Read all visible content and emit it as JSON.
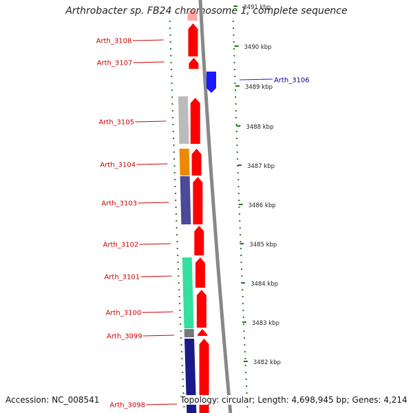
{
  "title": "Arthrobacter sp. FB24 chromosome 1, complete sequence",
  "footer": {
    "accession_label": "Accession:",
    "accession": "NC_008541",
    "topology_label": "Topology:",
    "topology": "circular",
    "length_label": "Length:",
    "length": "4,698,945 bp",
    "genes_label": "Genes:",
    "genes": "4,214"
  },
  "genes": [
    {
      "name": "Arth_3108",
      "strand": "forward"
    },
    {
      "name": "Arth_3107",
      "strand": "forward"
    },
    {
      "name": "Arth_3106",
      "strand": "reverse"
    },
    {
      "name": "Arth_3105",
      "strand": "forward"
    },
    {
      "name": "Arth_3104",
      "strand": "forward"
    },
    {
      "name": "Arth_3103",
      "strand": "forward"
    },
    {
      "name": "Arth_3102",
      "strand": "forward"
    },
    {
      "name": "Arth_3101",
      "strand": "forward"
    },
    {
      "name": "Arth_3100",
      "strand": "forward"
    },
    {
      "name": "Arth_3099",
      "strand": "forward"
    },
    {
      "name": "Arth_3098",
      "strand": "forward"
    }
  ],
  "ticks": [
    "3491 kbp",
    "3490 kbp",
    "3489 kbp",
    "3488 kbp",
    "3487 kbp",
    "3486 kbp",
    "3485 kbp",
    "3484 kbp",
    "3483 kbp",
    "3482 kbp"
  ],
  "colors": {
    "forward": "#ff0000",
    "reverse": "#1a1aff",
    "forward_label": "#cc0000",
    "reverse_label": "#000099",
    "backbone": "#888888",
    "tick": "#1a7a1a",
    "cog": [
      "#bbbbbb",
      "#ee8800",
      "#4a4a99",
      "#33e0a0",
      "#777777",
      "#1a1a88"
    ]
  }
}
